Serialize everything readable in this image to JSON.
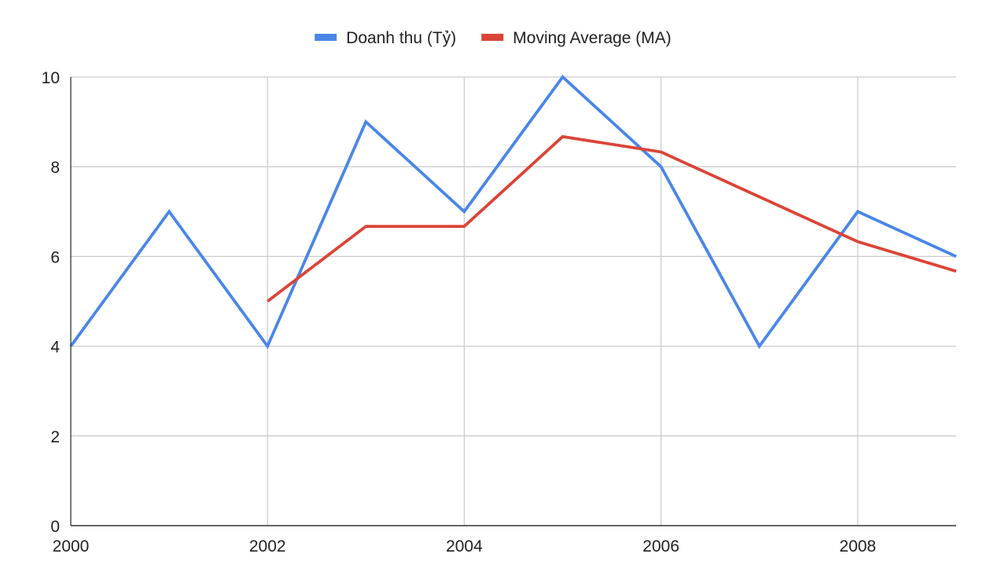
{
  "chart_data": {
    "type": "line",
    "title": "",
    "xlabel": "",
    "ylabel": "",
    "x": [
      2000,
      2001,
      2002,
      2003,
      2004,
      2005,
      2006,
      2007,
      2008,
      2009
    ],
    "xlim": [
      2000,
      2009
    ],
    "ylim": [
      0,
      10
    ],
    "x_ticks": [
      2000,
      2002,
      2004,
      2006,
      2008
    ],
    "y_ticks": [
      0,
      2,
      4,
      6,
      8,
      10
    ],
    "x_tick_labels": [
      "2000",
      "2002",
      "2004",
      "2006",
      "2008"
    ],
    "y_tick_labels": [
      "0",
      "2",
      "4",
      "6",
      "8",
      "10"
    ],
    "grid": true,
    "legend_position": "top-center",
    "series": [
      {
        "name": "Doanh thu (Tỷ)",
        "color": "#4a86e8",
        "values": [
          4,
          7,
          4,
          9,
          7,
          10,
          8,
          4,
          7,
          6
        ]
      },
      {
        "name": "Moving Average (MA)",
        "color": "#db4437",
        "values": [
          null,
          null,
          5,
          6.67,
          6.67,
          8.67,
          8.33,
          7.33,
          6.33,
          5.67
        ]
      }
    ]
  }
}
